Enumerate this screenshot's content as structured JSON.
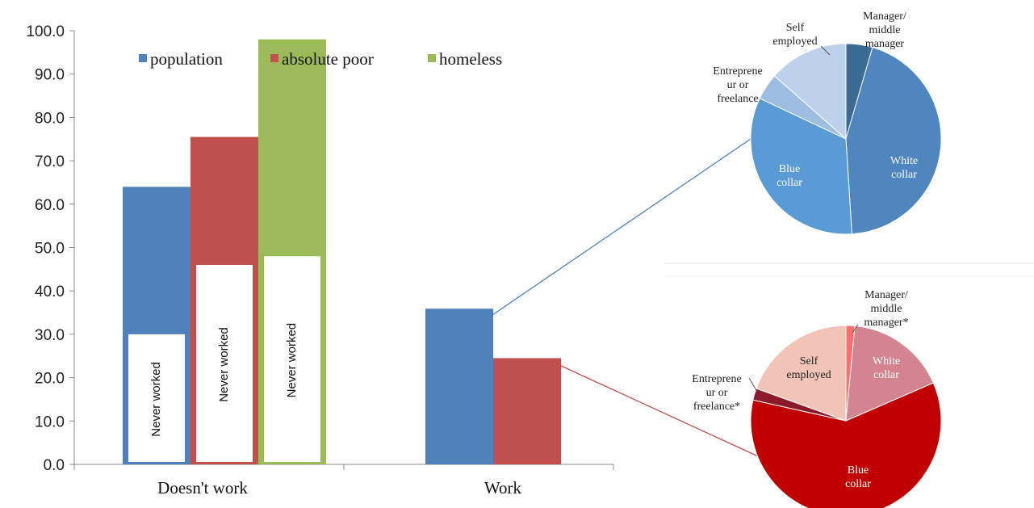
{
  "chart_data": [
    {
      "type": "bar",
      "categories": [
        "Doesn't work",
        "Work"
      ],
      "series": [
        {
          "name": "population",
          "color": "#4f81bd",
          "values": [
            64.0,
            35.9
          ]
        },
        {
          "name": "absolute poor",
          "color": "#c0504d",
          "values": [
            75.5,
            24.5
          ]
        },
        {
          "name": "homeless",
          "color": "#9bbb59",
          "values": [
            98.0,
            null
          ]
        }
      ],
      "inner_overlay": {
        "label": "Never worked",
        "values": [
          30.0,
          46.0,
          48.0
        ]
      },
      "ylim": [
        0,
        100
      ],
      "yticks": [
        "0.0",
        "10.0",
        "20.0",
        "30.0",
        "40.0",
        "50.0",
        "60.0",
        "70.0",
        "80.0",
        "90.0",
        "100.0"
      ],
      "legend_placement": "top"
    },
    {
      "type": "pie",
      "slices": [
        {
          "label": "Manager/ middle manager",
          "value": 4.5,
          "color": "#3a6b94"
        },
        {
          "label": "White collar",
          "value": 44.5,
          "color": "#4f86bf"
        },
        {
          "label": "Blue collar",
          "value": 33.0,
          "color": "#5a9bd5"
        },
        {
          "label": "Entreprene ur or freelance",
          "value": 4.5,
          "color": "#9dbde2"
        },
        {
          "label": "Self employed",
          "value": 13.5,
          "color": "#bdd1ea"
        }
      ]
    },
    {
      "type": "pie",
      "slices": [
        {
          "label": "Manager/ middle manager*",
          "value": 1.5,
          "color": "#ff6f6f"
        },
        {
          "label": "White collar",
          "value": 17.0,
          "color": "#d48390"
        },
        {
          "label": "Blue collar",
          "value": 60.0,
          "color": "#c00000"
        },
        {
          "label": "Entreprene ur or freelance*",
          "value": 2.0,
          "color": "#8b1a2a"
        },
        {
          "label": "Self employed",
          "value": 19.5,
          "color": "#f2c4b8"
        }
      ]
    }
  ]
}
